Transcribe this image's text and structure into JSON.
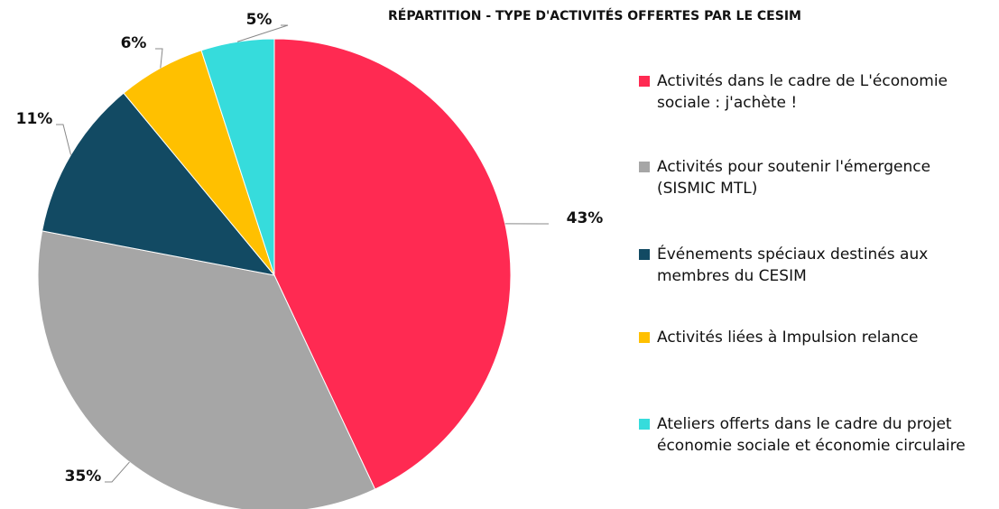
{
  "chart_data": {
    "type": "pie",
    "title": "RÉPARTITION - TYPE D'ACTIVITÉS OFFERTES PAR LE CESIM",
    "categories": [
      "Activités dans le cadre de L'économie sociale : j'achète !",
      "Activités pour soutenir l'émergence (SISMIC MTL)",
      "Événements spéciaux destinés aux membres du CESIM",
      "Activités liées à Impulsion relance",
      "Ateliers offerts dans le cadre du projet économie sociale et économie circulaire"
    ],
    "values": [
      43,
      35,
      11,
      6,
      5
    ],
    "value_labels": [
      "43%",
      "35%",
      "11%",
      "6%",
      "5%"
    ],
    "colors": [
      "#ff2a52",
      "#a6a6a6",
      "#124a63",
      "#ffc000",
      "#36dcdc"
    ],
    "legend": "right"
  }
}
